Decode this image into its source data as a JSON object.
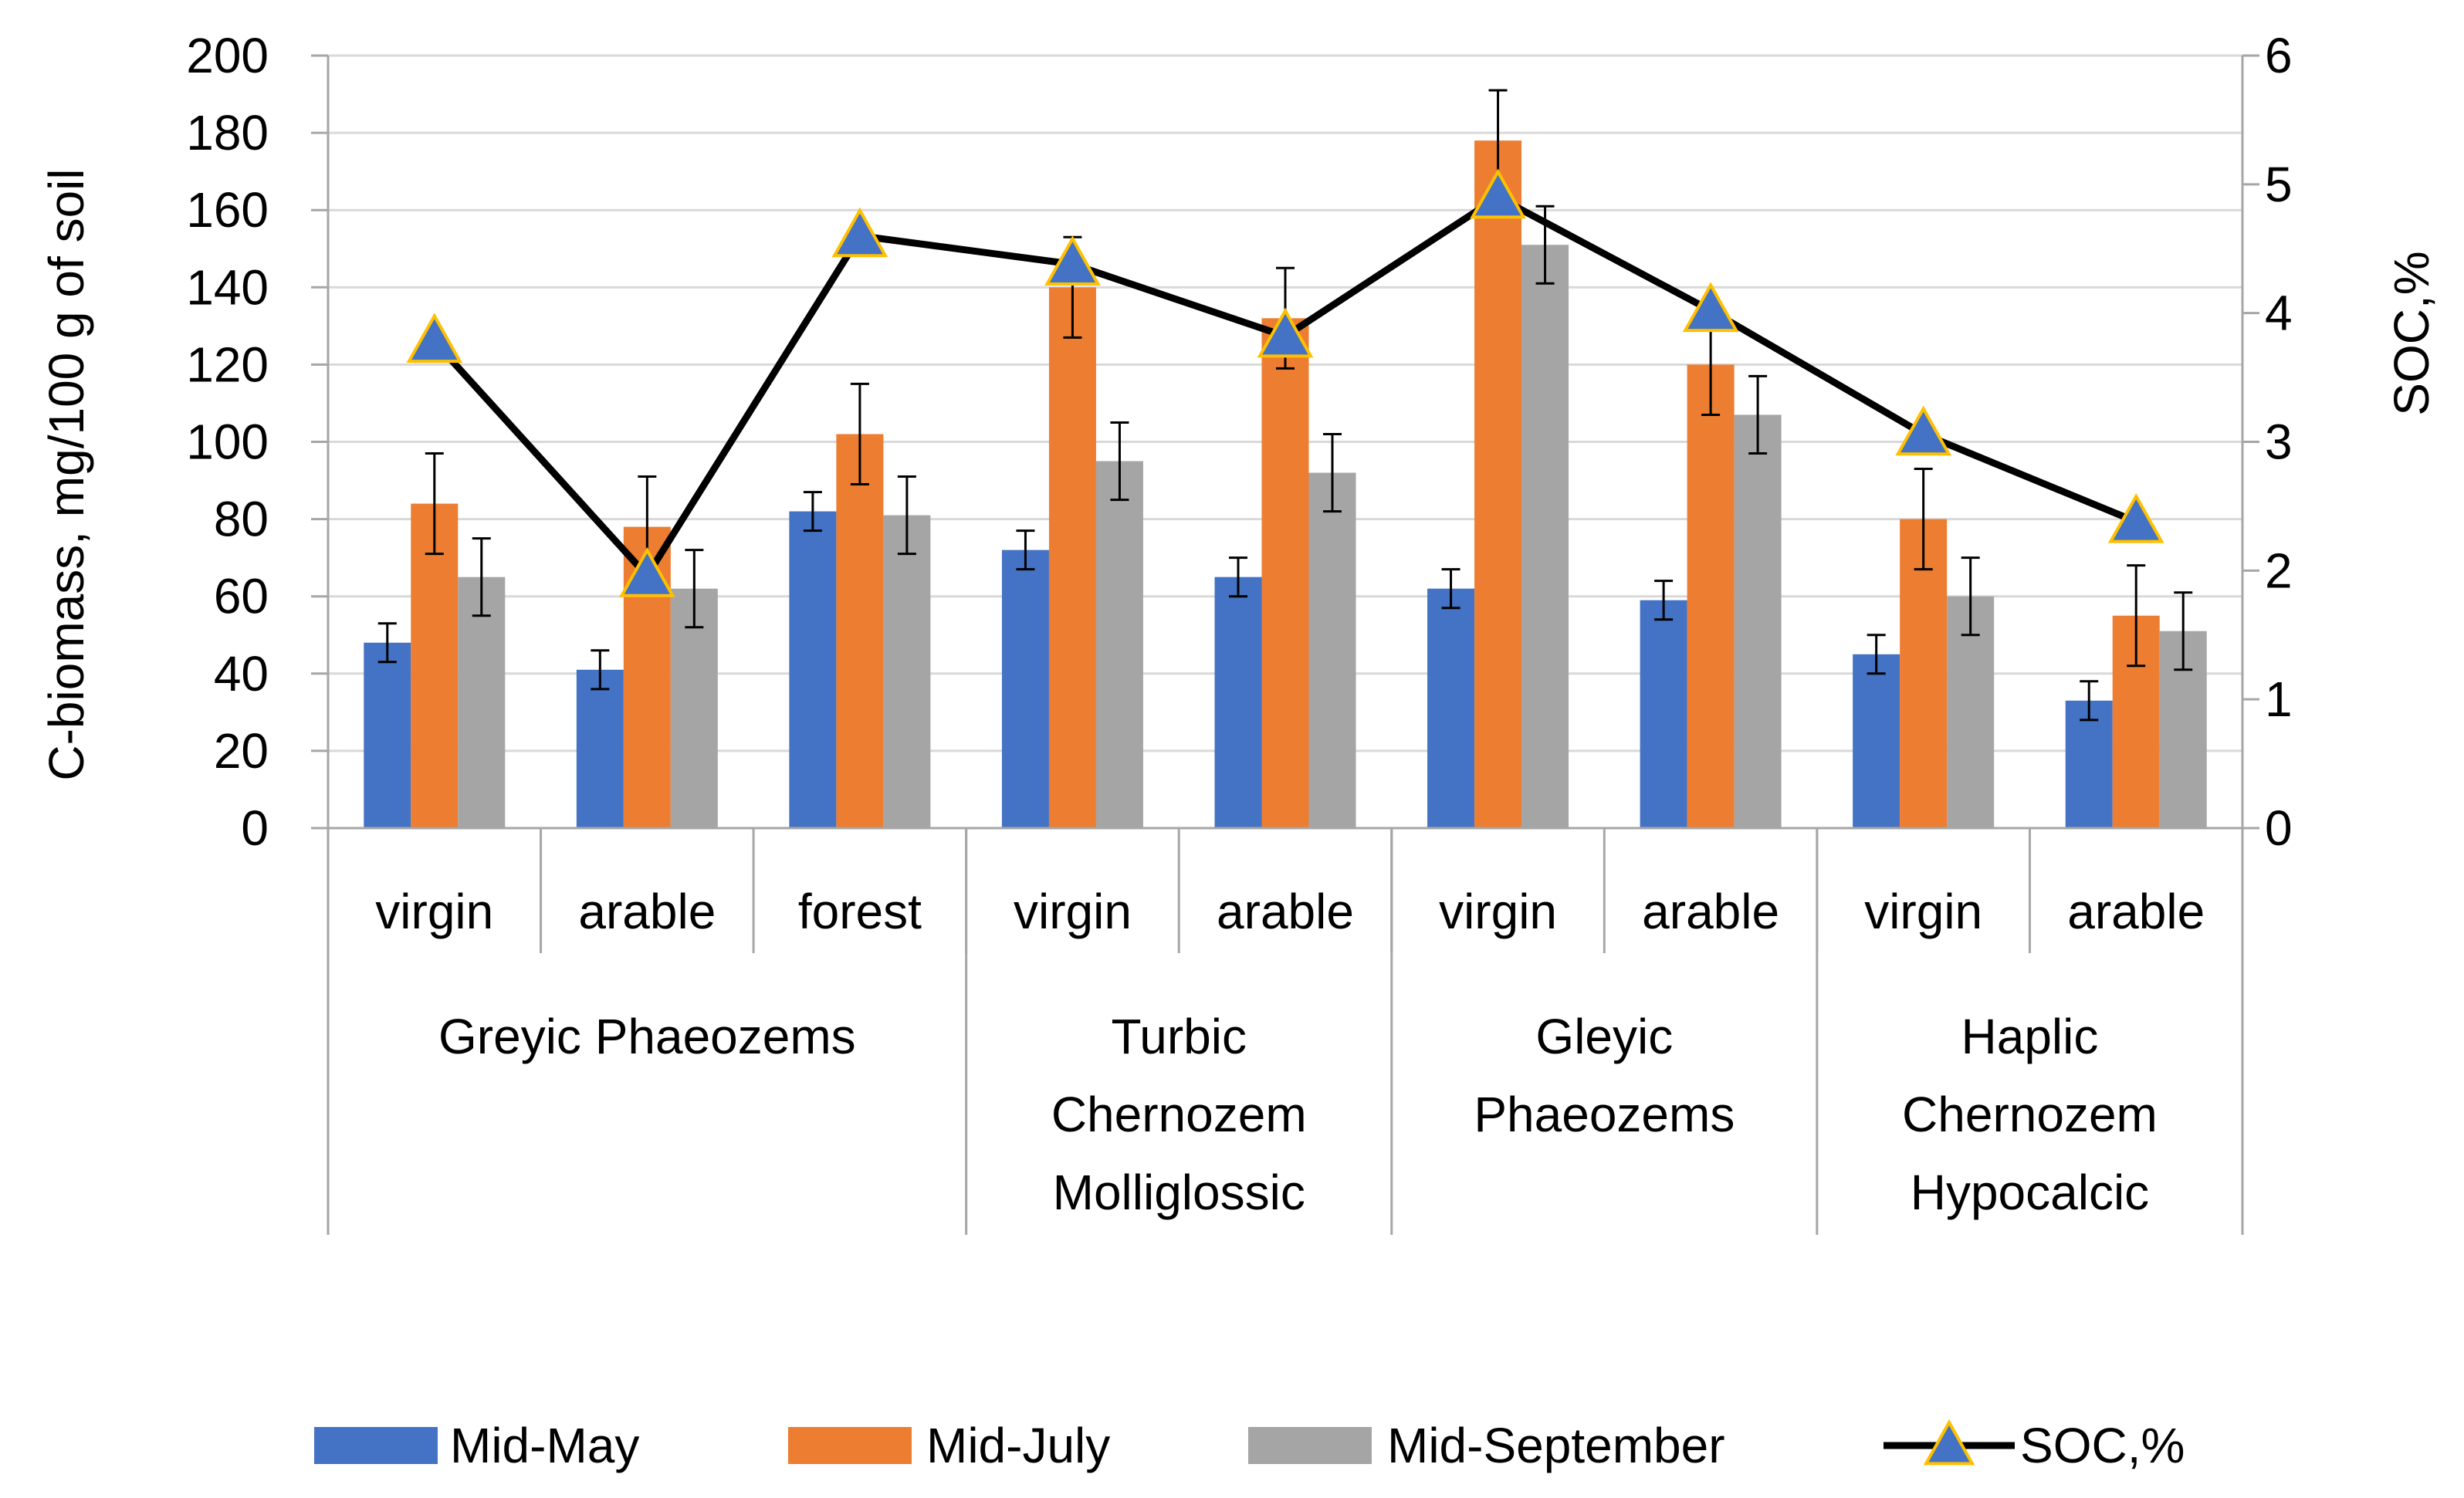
{
  "chart_data": {
    "type": "bar",
    "title": "",
    "ylabel": "C-biomass,  mg/100 g  of soil",
    "y2label": "SOC,%",
    "ylim": [
      0,
      200
    ],
    "y2lim": [
      0,
      6
    ],
    "yticks": [
      0,
      20,
      40,
      60,
      80,
      100,
      120,
      140,
      160,
      180,
      200
    ],
    "y2ticks": [
      0,
      1,
      2,
      3,
      4,
      5,
      6
    ],
    "categories": [
      "virgin",
      "arable",
      "forest",
      "virgin",
      "arable",
      "virgin",
      "arable",
      "virgin",
      "arable"
    ],
    "groups": [
      {
        "lines": [
          "Greyic Phaeozems"
        ],
        "span": 3
      },
      {
        "lines": [
          "Turbic",
          "Chernozem",
          "Molliglossic"
        ],
        "span": 2
      },
      {
        "lines": [
          "Gleyic",
          "Phaeozems"
        ],
        "span": 2
      },
      {
        "lines": [
          "Haplic",
          "Chernozem",
          "Hypocalcic"
        ],
        "span": 2
      }
    ],
    "series": [
      {
        "name": "Mid-May",
        "color": "#4472C4",
        "values": [
          48,
          41,
          82,
          72,
          65,
          62,
          59,
          45,
          33
        ],
        "errors": [
          5,
          5,
          5,
          5,
          5,
          5,
          5,
          5,
          5
        ]
      },
      {
        "name": "Mid-July",
        "color": "#ED7D31",
        "values": [
          84,
          78,
          102,
          140,
          132,
          178,
          120,
          80,
          55
        ],
        "errors": [
          13,
          13,
          13,
          13,
          13,
          13,
          13,
          13,
          13
        ]
      },
      {
        "name": "Mid-September",
        "color": "#A5A5A5",
        "values": [
          65,
          62,
          81,
          95,
          92,
          151,
          107,
          60,
          51
        ],
        "errors": [
          10,
          10,
          10,
          10,
          10,
          10,
          10,
          10,
          10
        ]
      }
    ],
    "line_series": {
      "name": "SOC,%",
      "axis": "secondary",
      "color": "#000000",
      "marker": "triangle",
      "marker_color": "#4472C4",
      "marker_edge": "#FFC000",
      "values": [
        3.78,
        1.96,
        4.6,
        4.38,
        3.82,
        4.9,
        4.02,
        3.06,
        2.38
      ]
    },
    "legend_position": "bottom"
  }
}
